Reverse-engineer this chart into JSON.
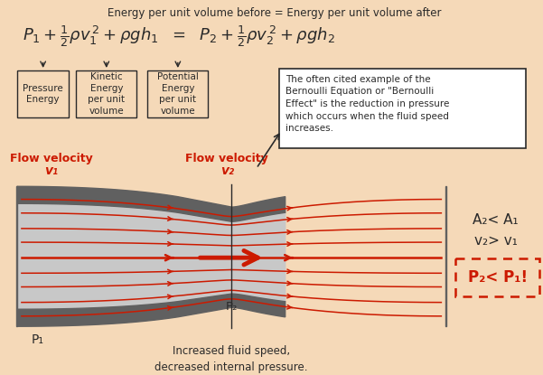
{
  "bg_color": "#f5d9b8",
  "title_text": "Energy per unit volume before = Energy per unit volume after",
  "label1": "Pressure\nEnergy",
  "label2": "Kinetic\nEnergy\nper unit\nvolume",
  "label3": "Potential\nEnergy\nper unit\nvolume",
  "flow_v1_line1": "Flow velocity",
  "flow_v1_line2": "v₁",
  "flow_v2_line1": "Flow velocity",
  "flow_v2_line2": "v₂",
  "note_text": "The often cited example of the\nBernoulli Equation or \"Bernoulli\nEffect\" is the reduction in pressure\nwhich occurs when the fluid speed\nincreases.",
  "eq_right_line1": "A₂< A₁",
  "eq_right_line2": "v₂> v₁",
  "p2_box": "P₂< P₁!",
  "p1_label": "P₁",
  "p2_label": "P₂",
  "bottom_text": "Increased fluid speed,\ndecreased internal pressure.",
  "dark_color": "#2a2a2a",
  "red_color": "#cc1a00",
  "vessel_fill": "#c8c8c8",
  "vessel_wall": "#606060",
  "arrow_color": "#cc1a00",
  "box_edge": "#555555",
  "white": "#ffffff"
}
